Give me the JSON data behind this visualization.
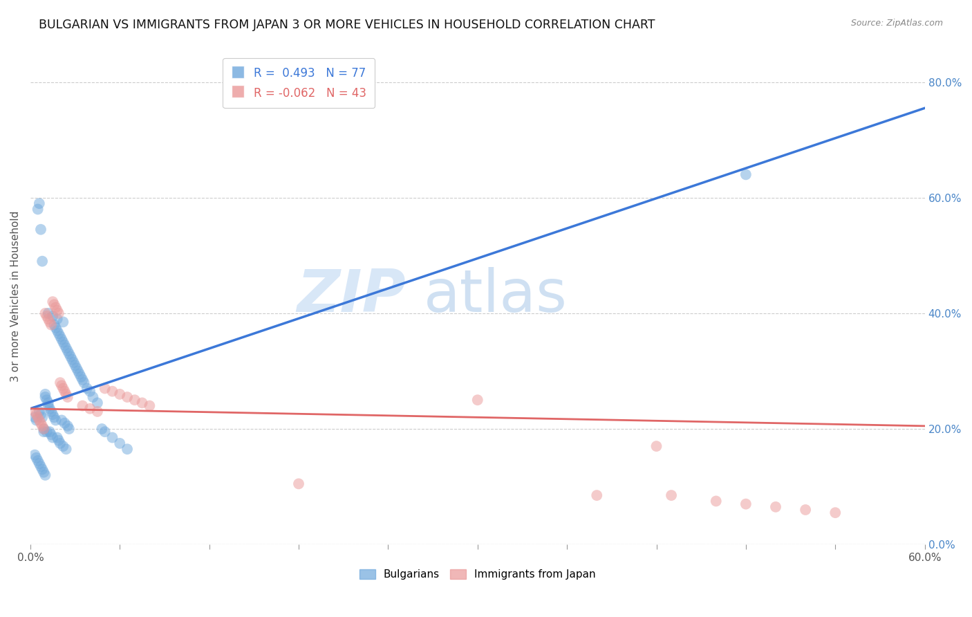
{
  "title": "BULGARIAN VS IMMIGRANTS FROM JAPAN 3 OR MORE VEHICLES IN HOUSEHOLD CORRELATION CHART",
  "source": "Source: ZipAtlas.com",
  "ylabel": "3 or more Vehicles in Household",
  "legend_label1": "Bulgarians",
  "legend_label2": "Immigrants from Japan",
  "r1": 0.493,
  "n1": 77,
  "r2": -0.062,
  "n2": 43,
  "blue_color": "#6fa8dc",
  "pink_color": "#ea9999",
  "blue_line_color": "#3c78d8",
  "pink_line_color": "#e06666",
  "right_axis_color": "#4a86c8",
  "xmin": 0.0,
  "xmax": 0.6,
  "ymin": 0.0,
  "ymax": 0.86,
  "yticks": [
    0.0,
    0.2,
    0.4,
    0.6,
    0.8
  ],
  "xtick_positions": [
    0.0,
    0.06,
    0.12,
    0.18,
    0.24,
    0.3,
    0.36,
    0.42,
    0.48,
    0.54,
    0.6
  ],
  "watermark_zip": "ZIP",
  "watermark_atlas": "atlas",
  "blue_scatter_x": [
    0.003,
    0.004,
    0.005,
    0.006,
    0.006,
    0.007,
    0.007,
    0.008,
    0.008,
    0.009,
    0.009,
    0.01,
    0.01,
    0.011,
    0.011,
    0.012,
    0.012,
    0.013,
    0.013,
    0.014,
    0.014,
    0.015,
    0.015,
    0.016,
    0.016,
    0.017,
    0.017,
    0.018,
    0.018,
    0.019,
    0.019,
    0.02,
    0.02,
    0.021,
    0.021,
    0.022,
    0.022,
    0.023,
    0.023,
    0.024,
    0.024,
    0.025,
    0.025,
    0.026,
    0.026,
    0.027,
    0.028,
    0.029,
    0.03,
    0.031,
    0.032,
    0.033,
    0.034,
    0.035,
    0.036,
    0.038,
    0.04,
    0.042,
    0.045,
    0.048,
    0.05,
    0.055,
    0.06,
    0.065,
    0.003,
    0.004,
    0.005,
    0.006,
    0.007,
    0.008,
    0.009,
    0.01,
    0.012,
    0.015,
    0.018,
    0.022,
    0.48
  ],
  "blue_scatter_y": [
    0.22,
    0.215,
    0.58,
    0.59,
    0.23,
    0.225,
    0.545,
    0.49,
    0.22,
    0.2,
    0.195,
    0.26,
    0.255,
    0.25,
    0.195,
    0.245,
    0.24,
    0.235,
    0.195,
    0.23,
    0.19,
    0.225,
    0.185,
    0.38,
    0.22,
    0.375,
    0.215,
    0.37,
    0.185,
    0.365,
    0.18,
    0.36,
    0.175,
    0.355,
    0.215,
    0.35,
    0.17,
    0.345,
    0.21,
    0.34,
    0.165,
    0.335,
    0.205,
    0.33,
    0.2,
    0.325,
    0.32,
    0.315,
    0.31,
    0.305,
    0.3,
    0.295,
    0.29,
    0.285,
    0.28,
    0.27,
    0.265,
    0.255,
    0.245,
    0.2,
    0.195,
    0.185,
    0.175,
    0.165,
    0.155,
    0.15,
    0.145,
    0.14,
    0.135,
    0.13,
    0.125,
    0.12,
    0.4,
    0.395,
    0.39,
    0.385,
    0.64
  ],
  "pink_scatter_x": [
    0.003,
    0.004,
    0.005,
    0.006,
    0.007,
    0.008,
    0.009,
    0.01,
    0.011,
    0.012,
    0.013,
    0.014,
    0.015,
    0.016,
    0.017,
    0.018,
    0.019,
    0.02,
    0.021,
    0.022,
    0.023,
    0.024,
    0.025,
    0.05,
    0.055,
    0.06,
    0.065,
    0.07,
    0.075,
    0.08,
    0.18,
    0.3,
    0.38,
    0.43,
    0.46,
    0.48,
    0.5,
    0.52,
    0.54,
    0.42,
    0.035,
    0.04,
    0.045
  ],
  "pink_scatter_y": [
    0.23,
    0.225,
    0.22,
    0.215,
    0.21,
    0.205,
    0.2,
    0.4,
    0.395,
    0.39,
    0.385,
    0.38,
    0.42,
    0.415,
    0.41,
    0.405,
    0.4,
    0.28,
    0.275,
    0.27,
    0.265,
    0.26,
    0.255,
    0.27,
    0.265,
    0.26,
    0.255,
    0.25,
    0.245,
    0.24,
    0.105,
    0.25,
    0.085,
    0.085,
    0.075,
    0.07,
    0.065,
    0.06,
    0.055,
    0.17,
    0.24,
    0.235,
    0.23
  ],
  "blue_line_x": [
    0.0,
    0.6
  ],
  "blue_line_y": [
    0.235,
    0.755
  ],
  "pink_line_x": [
    0.0,
    0.6
  ],
  "pink_line_y": [
    0.235,
    0.205
  ]
}
